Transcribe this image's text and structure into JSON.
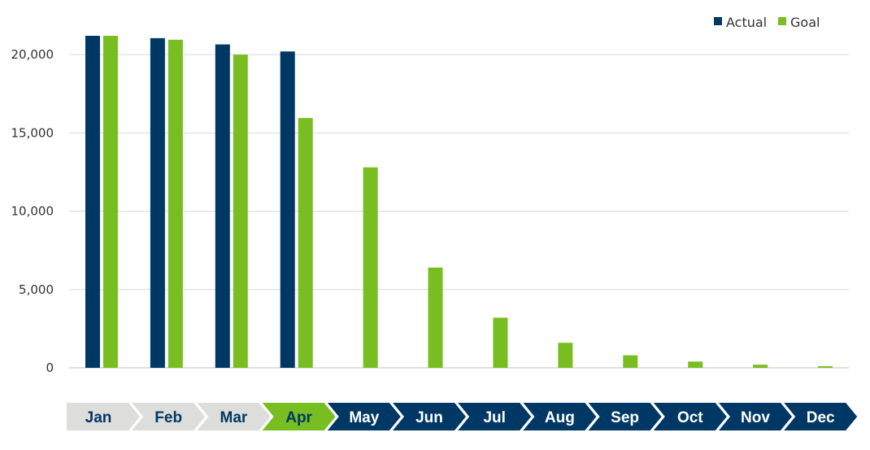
{
  "chart_data": {
    "type": "bar",
    "categories": [
      "Jan",
      "Feb",
      "Mar",
      "Apr",
      "May",
      "Jun",
      "Jul",
      "Aug",
      "Sep",
      "Oct",
      "Nov",
      "Dec"
    ],
    "series": [
      {
        "name": "Actual",
        "color": "#003865",
        "values": [
          21200,
          21050,
          20650,
          20200,
          null,
          null,
          null,
          null,
          null,
          null,
          null,
          null
        ]
      },
      {
        "name": "Goal",
        "color": "#78BE20",
        "values": [
          21200,
          20950,
          20000,
          15950,
          12800,
          6400,
          3200,
          1600,
          800,
          400,
          200,
          100
        ]
      }
    ],
    "yticks": [
      "0",
      "5,000",
      "10,000",
      "15,000",
      "20,000"
    ],
    "ytick_values": [
      0,
      5000,
      10000,
      15000,
      20000
    ],
    "ylim": [
      0,
      21200
    ],
    "grid": true,
    "legend_position": "top-right",
    "month_chevrons": {
      "past_months": [
        "Jan",
        "Feb",
        "Mar"
      ],
      "current_month": "Apr",
      "past_fill": "#DDDDDB",
      "past_text": "#003865",
      "current_fill": "#78BE20",
      "current_text": "#003865",
      "future_fill": "#003865",
      "future_text": "#FFFFFF"
    }
  }
}
